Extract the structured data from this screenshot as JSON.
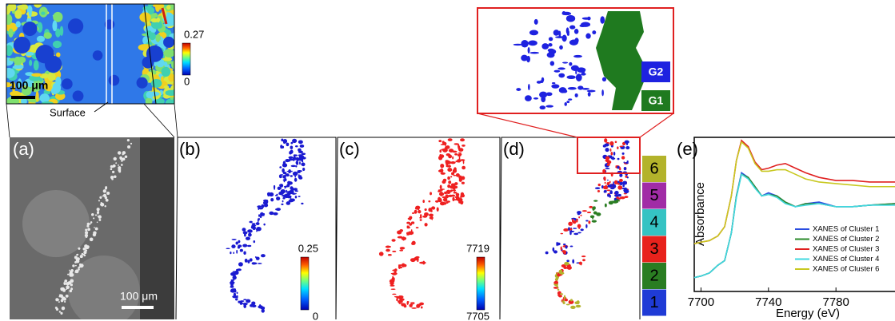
{
  "figure": {
    "map": {
      "scale_bar": "100 μm",
      "surface_label": "Surface",
      "colorbar": {
        "max": 0.27,
        "min": 0
      }
    },
    "panel_labels": [
      "(a)",
      "(b)",
      "(c)",
      "(d)",
      "(e)"
    ],
    "panel_a": {
      "scale_bar": "100 μm"
    },
    "panel_b": {
      "colorbar": {
        "max": 0.25,
        "min": 0
      }
    },
    "panel_c": {
      "colorbar": {
        "max": 7719,
        "min": 7705
      }
    },
    "panel_d": {
      "clusters": [
        {
          "label": 6,
          "color": "#b3b32b"
        },
        {
          "label": 5,
          "color": "#a12ca6"
        },
        {
          "label": 4,
          "color": "#35c3c3"
        },
        {
          "label": 3,
          "color": "#e8221c"
        },
        {
          "label": 2,
          "color": "#2a7d22"
        },
        {
          "label": 1,
          "color": "#1f3bd6"
        }
      ]
    },
    "inset": {
      "groups": [
        {
          "label": "G2",
          "color": "#1e22e0"
        },
        {
          "label": "G1",
          "color": "#1f7a1f"
        }
      ]
    }
  },
  "chart_data": {
    "type": "line",
    "xlabel": "Energy (eV)",
    "ylabel": "Absorbance",
    "xlim": [
      7696,
      7815
    ],
    "ylim": [
      0,
      1
    ],
    "xticks": [
      7700,
      7740,
      7780
    ],
    "legend": "lower right",
    "x": [
      7696,
      7700,
      7705,
      7710,
      7714,
      7718,
      7721,
      7724,
      7728,
      7732,
      7736,
      7740,
      7745,
      7750,
      7756,
      7762,
      7770,
      7780,
      7790,
      7800,
      7815
    ],
    "series": [
      {
        "name": "XANES of Cluster 1",
        "color": "#2a4de0",
        "values": [
          0.09,
          0.1,
          0.12,
          0.17,
          0.2,
          0.38,
          0.62,
          0.77,
          0.74,
          0.68,
          0.62,
          0.64,
          0.62,
          0.58,
          0.55,
          0.57,
          0.58,
          0.55,
          0.55,
          0.56,
          0.57
        ]
      },
      {
        "name": "XANES of Cluster 2",
        "color": "#2a8a2a",
        "values": [
          0.09,
          0.1,
          0.12,
          0.17,
          0.2,
          0.38,
          0.62,
          0.76,
          0.74,
          0.68,
          0.62,
          0.63,
          0.62,
          0.58,
          0.55,
          0.57,
          0.57,
          0.55,
          0.55,
          0.56,
          0.57
        ]
      },
      {
        "name": "XANES of Cluster 3",
        "color": "#e02020",
        "values": [
          0.31,
          0.32,
          0.33,
          0.36,
          0.42,
          0.62,
          0.85,
          0.98,
          0.94,
          0.84,
          0.79,
          0.8,
          0.82,
          0.83,
          0.8,
          0.77,
          0.74,
          0.72,
          0.72,
          0.71,
          0.71
        ]
      },
      {
        "name": "XANES of Cluster 4",
        "color": "#40d8e0",
        "values": [
          0.09,
          0.1,
          0.12,
          0.17,
          0.2,
          0.38,
          0.61,
          0.76,
          0.73,
          0.67,
          0.62,
          0.63,
          0.61,
          0.57,
          0.55,
          0.56,
          0.57,
          0.55,
          0.55,
          0.56,
          0.56
        ]
      },
      {
        "name": "XANES of Cluster 6",
        "color": "#c8c820",
        "values": [
          0.31,
          0.32,
          0.33,
          0.36,
          0.42,
          0.62,
          0.85,
          0.97,
          0.93,
          0.83,
          0.78,
          0.78,
          0.79,
          0.79,
          0.76,
          0.73,
          0.71,
          0.7,
          0.69,
          0.68,
          0.68
        ]
      }
    ]
  }
}
